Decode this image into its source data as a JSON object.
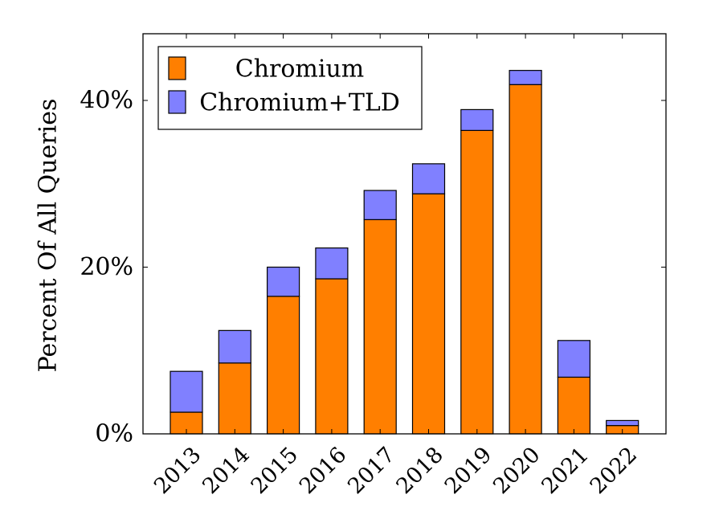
{
  "chart_data": {
    "type": "bar",
    "stacked": true,
    "categories": [
      "2013",
      "2014",
      "2015",
      "2016",
      "2017",
      "2018",
      "2019",
      "2020",
      "2021",
      "2022"
    ],
    "series": [
      {
        "name": "Chromium",
        "color": "#ff7f00",
        "values": [
          2.6,
          8.5,
          16.5,
          18.6,
          25.7,
          28.8,
          36.4,
          41.9,
          6.8,
          1.0
        ]
      },
      {
        "name": "Chromium+TLD",
        "color": "#8080ff",
        "values": [
          4.9,
          3.9,
          3.5,
          3.7,
          3.5,
          3.6,
          2.5,
          1.7,
          4.4,
          0.6
        ]
      }
    ],
    "ylabel": "Percent Of All Queries",
    "xlabel": "",
    "ylim": [
      0,
      48
    ],
    "yticks": [
      0,
      20,
      40
    ],
    "ytick_labels": [
      "0%",
      "20%",
      "40%"
    ],
    "legend_position": "top-left",
    "grid": false
  }
}
